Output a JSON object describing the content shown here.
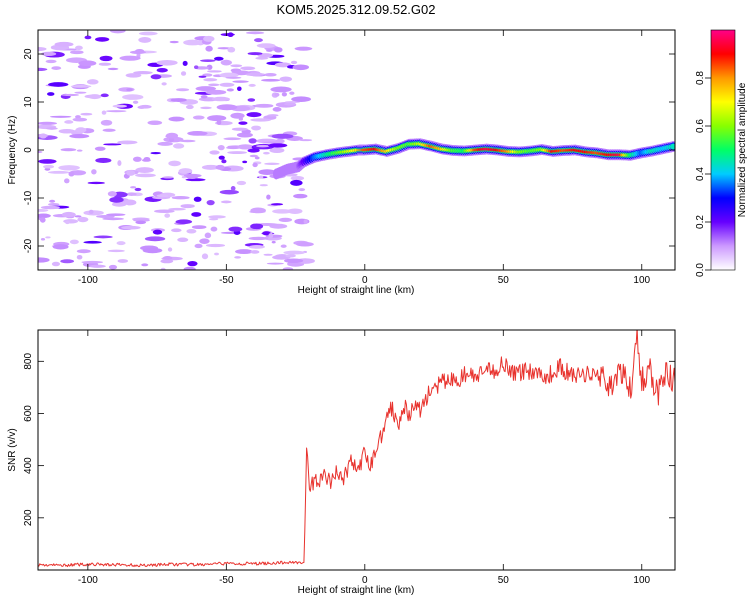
{
  "title": "KOM5.2025.312.09.52.G02",
  "chart_data": [
    {
      "type": "heatmap",
      "xlabel": "Height of straight line (km)",
      "ylabel": "Frequency (Hz)",
      "xlim": [
        -118,
        112
      ],
      "ylim": [
        -25,
        25
      ],
      "xticks": [
        -100,
        -50,
        0,
        50,
        100
      ],
      "yticks": [
        -20,
        -10,
        0,
        10,
        20
      ],
      "colorbar": {
        "label": "Normalized spectral amplitude",
        "range": [
          0,
          1
        ],
        "ticks": [
          "0.0",
          "0.2",
          "0.4",
          "0.6",
          "0.8"
        ],
        "tick_values": [
          0,
          0.2,
          0.4,
          0.6,
          0.8
        ],
        "colormap": [
          "#ffffff",
          "#cc99ff",
          "#6600ff",
          "#0000ff",
          "#00ccff",
          "#00ff66",
          "#88ff00",
          "#ffff00",
          "#ff9900",
          "#ff0000",
          "#ff0088"
        ]
      },
      "ridge": {
        "x": [
          -32,
          -28,
          -24,
          -22,
          -18,
          -14,
          -10,
          -6,
          -2,
          0,
          4,
          8,
          12,
          16,
          20,
          24,
          28,
          32,
          36,
          40,
          44,
          48,
          52,
          56,
          60,
          64,
          68,
          72,
          76,
          80,
          84,
          88,
          92,
          96,
          100,
          104,
          108,
          112
        ],
        "freq": [
          -5,
          -4,
          -3.5,
          -2.5,
          -1.5,
          -1,
          -0.6,
          -0.3,
          0,
          0,
          0.2,
          -0.3,
          0.3,
          1.2,
          1.3,
          0.8,
          0.2,
          -0.1,
          -0.2,
          0,
          0.2,
          0,
          -0.3,
          -0.4,
          -0.2,
          0.1,
          -0.3,
          -0.1,
          0,
          -0.4,
          -0.6,
          -1,
          -1,
          -1.1,
          -0.6,
          -0.2,
          0.3,
          0.8
        ],
        "amp": [
          0.1,
          0.12,
          0.12,
          0.2,
          0.35,
          0.45,
          0.55,
          0.65,
          0.75,
          0.85,
          0.9,
          0.75,
          0.6,
          0.55,
          0.65,
          0.85,
          0.75,
          0.55,
          0.5,
          0.85,
          0.95,
          0.9,
          0.8,
          0.6,
          0.55,
          0.6,
          0.9,
          0.85,
          0.9,
          0.9,
          0.85,
          0.9,
          0.95,
          0.5,
          0.35,
          0.45,
          0.4,
          0.45
        ]
      }
    },
    {
      "type": "line",
      "xlabel": "Height of straight line (km)",
      "ylabel": "SNR (v/v)",
      "xlim": [
        -118,
        112
      ],
      "ylim": [
        0,
        920
      ],
      "xticks": [
        -100,
        -50,
        0,
        50,
        100
      ],
      "yticks": [
        200,
        400,
        600,
        800
      ],
      "color": "#e8322d",
      "x": [
        -118,
        -110,
        -100,
        -90,
        -80,
        -70,
        -60,
        -50,
        -40,
        -30,
        -25,
        -22,
        -21,
        -20,
        -18,
        -15,
        -12,
        -10,
        -8,
        -5,
        -2,
        0,
        2,
        4,
        6,
        8,
        10,
        12,
        14,
        16,
        18,
        20,
        22,
        24,
        26,
        28,
        30,
        33,
        36,
        40,
        44,
        48,
        50,
        54,
        58,
        62,
        66,
        70,
        74,
        78,
        82,
        86,
        90,
        93,
        96,
        98,
        100,
        103,
        106,
        109,
        112
      ],
      "y": [
        20,
        18,
        22,
        20,
        18,
        22,
        20,
        25,
        24,
        28,
        30,
        28,
        450,
        310,
        340,
        360,
        330,
        390,
        340,
        420,
        380,
        450,
        400,
        460,
        520,
        600,
        620,
        560,
        640,
        580,
        640,
        610,
        660,
        690,
        700,
        720,
        730,
        720,
        750,
        740,
        760,
        770,
        800,
        750,
        765,
        760,
        740,
        780,
        750,
        740,
        760,
        730,
        710,
        760,
        680,
        920,
        720,
        760,
        680,
        750,
        720
      ]
    }
  ]
}
